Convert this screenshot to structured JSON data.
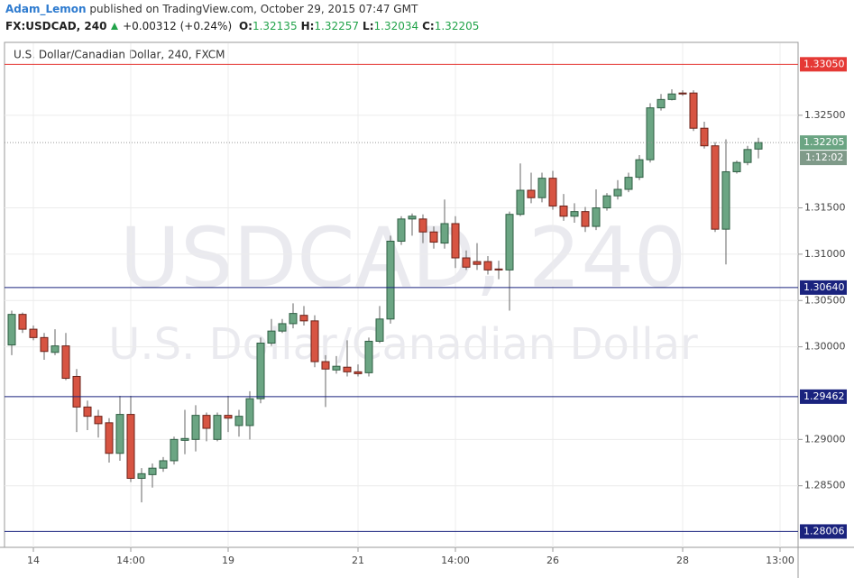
{
  "header": {
    "author": "Adam_Lemon",
    "published": "published on TradingView.com, October 29, 2015 07:47 GMT",
    "symbol": "FX:USDCAD, 240",
    "change": "+0.00312 (+0.24%)",
    "ohlc": [
      {
        "label": "O:",
        "value": "1.32135"
      },
      {
        "label": "H:",
        "value": "1.32257"
      },
      {
        "label": "L:",
        "value": "1.32034"
      },
      {
        "label": "C:",
        "value": "1.32205"
      }
    ]
  },
  "chart_data": {
    "type": "candlestick",
    "title": "U.S. Dollar/Canadian Dollar, 240, FXCM",
    "watermark": [
      "USDCAD, 240",
      "U.S. Dollar/Canadian Dollar"
    ],
    "categories": [
      null,
      null,
      "14",
      null,
      null,
      null,
      null,
      null,
      null,
      null,
      null,
      "14:00",
      null,
      null,
      null,
      null,
      null,
      null,
      null,
      null,
      "19",
      null,
      null,
      null,
      null,
      null,
      null,
      null,
      null,
      null,
      null,
      null,
      "21",
      null,
      null,
      null,
      null,
      null,
      null,
      null,
      null,
      "14:00",
      null,
      null,
      null,
      null,
      null,
      null,
      null,
      null,
      "26",
      null,
      null,
      null,
      null,
      null,
      null,
      null,
      null,
      null,
      null,
      null,
      "28",
      null,
      null,
      null,
      null,
      null,
      null,
      null,
      null,
      "13:00"
    ],
    "open": [
      1.3002,
      1.3035,
      1.3019,
      1.301,
      1.2994,
      1.3001,
      1.2968,
      1.2935,
      1.2925,
      1.2918,
      1.2885,
      1.2927,
      1.2858,
      1.2862,
      1.2869,
      1.2877,
      1.2899,
      1.29,
      1.2926,
      1.29,
      1.2926,
      1.2915,
      1.2915,
      1.2944,
      1.3004,
      1.3017,
      1.3025,
      1.3034,
      1.3028,
      1.2984,
      1.2975,
      1.2978,
      1.2973,
      1.2972,
      1.3006,
      1.303,
      1.3114,
      1.3138,
      1.3138,
      1.3124,
      1.3112,
      1.3133,
      1.3096,
      1.3092,
      1.3092,
      1.3084,
      1.3083,
      1.3143,
      1.3169,
      1.3161,
      1.3182,
      1.3152,
      1.3141,
      1.3146,
      1.313,
      1.315,
      1.3163,
      1.317,
      1.3183,
      1.3202,
      1.3258,
      1.3267,
      1.3274,
      1.3274,
      1.3236,
      1.3217,
      1.3127,
      1.3189,
      1.3199,
      1.32135,
      null,
      null
    ],
    "high": [
      1.3039,
      1.3037,
      1.3023,
      1.3015,
      1.3019,
      1.3015,
      1.2976,
      1.2942,
      1.2932,
      1.2923,
      1.2947,
      1.2947,
      1.2869,
      1.2874,
      1.2881,
      1.2903,
      1.2932,
      1.2937,
      1.2929,
      1.2929,
      1.2947,
      1.2932,
      1.2952,
      1.301,
      1.303,
      1.303,
      1.3047,
      1.3044,
      1.3034,
      1.2991,
      1.299,
      1.3007,
      1.2981,
      1.301,
      1.3044,
      1.312,
      1.3141,
      1.3144,
      1.3143,
      1.313,
      1.3159,
      1.3141,
      1.3104,
      1.3112,
      1.3098,
      1.3093,
      1.3146,
      1.3198,
      1.3188,
      1.3188,
      1.319,
      1.3165,
      1.3155,
      1.3151,
      1.317,
      1.3166,
      1.318,
      1.3188,
      1.3207,
      1.3263,
      1.3273,
      1.3278,
      1.3277,
      1.3277,
      1.3243,
      1.3221,
      1.3224,
      1.3201,
      1.3217,
      1.32257,
      null,
      null
    ],
    "low": [
      1.2991,
      1.3015,
      1.3007,
      1.2986,
      1.2991,
      1.2964,
      1.2908,
      1.291,
      1.2902,
      1.2875,
      1.2877,
      1.2854,
      1.2832,
      1.2848,
      1.2865,
      1.2873,
      1.2884,
      1.2887,
      1.2898,
      1.2898,
      1.2908,
      1.2903,
      1.29,
      1.2939,
      1.3001,
      1.3015,
      1.302,
      1.3023,
      1.2978,
      1.2935,
      1.2971,
      1.2968,
      1.2968,
      1.2968,
      1.3004,
      1.3025,
      1.311,
      1.312,
      1.3112,
      1.3106,
      1.3106,
      1.3085,
      1.3083,
      1.3083,
      1.3078,
      1.3073,
      1.3039,
      1.3141,
      1.3155,
      1.3156,
      1.3148,
      1.3136,
      1.3134,
      1.3124,
      1.3126,
      1.3147,
      1.3159,
      1.3167,
      1.318,
      1.3199,
      1.3255,
      1.3266,
      1.3271,
      1.3233,
      1.3214,
      1.3124,
      1.3089,
      1.3187,
      1.3196,
      1.32034,
      null,
      null
    ],
    "close": [
      1.3035,
      1.3019,
      1.301,
      1.2995,
      1.3001,
      1.2966,
      1.2935,
      1.2925,
      1.2917,
      1.2885,
      1.2927,
      1.2858,
      1.2863,
      1.2869,
      1.2877,
      1.29,
      1.2901,
      1.2926,
      1.2912,
      1.2926,
      1.2923,
      1.2925,
      1.2944,
      1.3004,
      1.3017,
      1.3025,
      1.3036,
      1.3028,
      1.2984,
      1.2976,
      1.2979,
      1.2973,
      1.2971,
      1.3006,
      1.303,
      1.3114,
      1.3138,
      1.3141,
      1.3124,
      1.3113,
      1.3133,
      1.3096,
      1.3086,
      1.3089,
      1.3083,
      1.3083,
      1.3143,
      1.3169,
      1.3161,
      1.3182,
      1.3152,
      1.3141,
      1.3146,
      1.313,
      1.315,
      1.3163,
      1.317,
      1.3183,
      1.3202,
      1.3258,
      1.3267,
      1.3273,
      1.3273,
      1.3236,
      1.3217,
      1.3127,
      1.3189,
      1.3199,
      1.3213,
      1.32205,
      null,
      null
    ],
    "up_color": "#6ba583",
    "down_color": "#d75442",
    "ylim": [
      1.27835,
      1.33277
    ],
    "yticks": [
      {
        "value": 1.325,
        "label": "1.32500"
      },
      {
        "value": 1.315,
        "label": "1.31500"
      },
      {
        "value": 1.31,
        "label": "1.31000"
      },
      {
        "value": 1.305,
        "label": "1.30500"
      },
      {
        "value": 1.3,
        "label": "1.30000"
      },
      {
        "value": 1.29,
        "label": "1.29000"
      },
      {
        "value": 1.285,
        "label": "1.28500"
      }
    ],
    "grid": true,
    "levels": [
      {
        "value": 1.3305,
        "label": "1.33050",
        "color": "#e53935"
      },
      {
        "value": 1.3064,
        "label": "1.30640",
        "color": "#1a237e"
      },
      {
        "value": 1.29462,
        "label": "1.29462",
        "color": "#1a237e"
      },
      {
        "value": 1.28006,
        "label": "1.28006",
        "color": "#1a237e"
      }
    ],
    "last_price": {
      "value": 1.32205,
      "label": "1.32205",
      "countdown": "1:12:02"
    }
  }
}
